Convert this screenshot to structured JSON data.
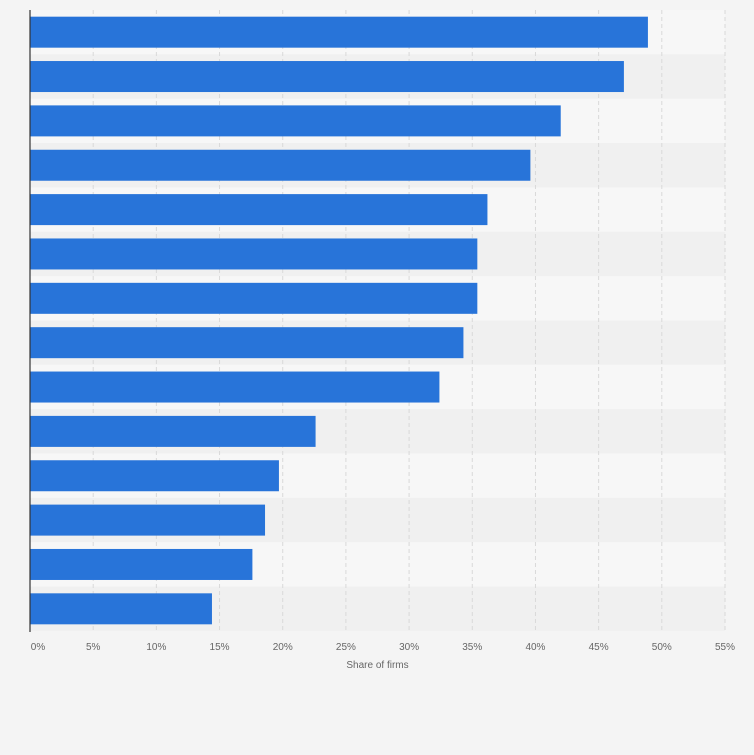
{
  "chart_data": {
    "type": "bar",
    "orientation": "horizontal",
    "title": "",
    "xlabel": "Share of firms",
    "ylabel": "",
    "xlim": [
      0,
      55
    ],
    "x_ticks": [
      0,
      5,
      10,
      15,
      20,
      25,
      30,
      35,
      40,
      45,
      50,
      55
    ],
    "tick_suffix": "%",
    "grid": "vertical dashed",
    "categories": [
      "",
      "",
      "",
      "",
      "",
      "",
      "",
      "",
      "",
      "",
      "",
      "",
      "",
      ""
    ],
    "values": [
      48.9,
      47.0,
      42.0,
      39.6,
      36.2,
      35.4,
      35.4,
      34.3,
      32.4,
      22.6,
      19.7,
      18.6,
      17.6,
      14.4
    ],
    "colors": {
      "bar": "#2874d9",
      "band_light": "#f7f7f7",
      "band_dark": "#f0f0f0",
      "page": "#f4f4f4",
      "grid": "#d9d9d9",
      "axis": "#333333",
      "tick_text": "#666666"
    }
  }
}
